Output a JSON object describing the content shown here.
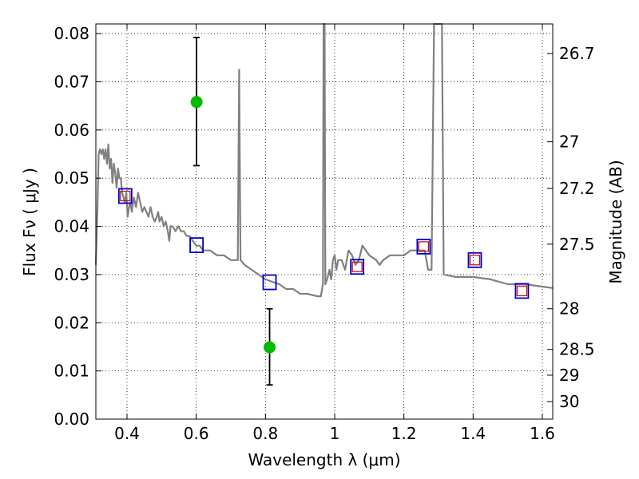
{
  "chart_data": {
    "type": "scatter",
    "title": "",
    "xlabel": "Wavelength  λ (μm)",
    "ylabel": "Flux  Fν  ( μJy )",
    "y2label": "Magnitude (AB)",
    "xlim": [
      0.31,
      1.63
    ],
    "ylim": [
      0.0,
      0.082
    ],
    "grid": true,
    "x_ticks": [
      0.4,
      0.6,
      0.8,
      1.0,
      1.2,
      1.4,
      1.6
    ],
    "x_tick_labels": [
      "0.4",
      "0.6",
      "0.8",
      "1",
      "1.2",
      "1.4",
      "1.6"
    ],
    "y_ticks": [
      0.0,
      0.01,
      0.02,
      0.03,
      0.04,
      0.05,
      0.06,
      0.07,
      0.08
    ],
    "y_tick_labels": [
      "0.00",
      "0.01",
      "0.02",
      "0.03",
      "0.04",
      "0.05",
      "0.06",
      "0.07",
      "0.08"
    ],
    "y2_ticks": [
      26.7,
      27,
      27.2,
      27.5,
      28,
      28.5,
      29,
      30
    ],
    "y2_tick_labels": [
      "26.7",
      "27",
      "27.2",
      "27.5",
      "28",
      "28.5",
      "29",
      "30"
    ],
    "series": [
      {
        "kind": "line",
        "color": "#808080",
        "points": [
          [
            0.31,
            0.032
          ],
          [
            0.315,
            0.045
          ],
          [
            0.318,
            0.055
          ],
          [
            0.322,
            0.056
          ],
          [
            0.326,
            0.055
          ],
          [
            0.33,
            0.056
          ],
          [
            0.334,
            0.054
          ],
          [
            0.338,
            0.056
          ],
          [
            0.342,
            0.053
          ],
          [
            0.346,
            0.057
          ],
          [
            0.35,
            0.052
          ],
          [
            0.354,
            0.054
          ],
          [
            0.358,
            0.049
          ],
          [
            0.362,
            0.053
          ],
          [
            0.366,
            0.051
          ],
          [
            0.37,
            0.048
          ],
          [
            0.374,
            0.052
          ],
          [
            0.378,
            0.05
          ],
          [
            0.382,
            0.05
          ],
          [
            0.386,
            0.047
          ],
          [
            0.39,
            0.046
          ],
          [
            0.394,
            0.045
          ],
          [
            0.398,
            0.047
          ],
          [
            0.402,
            0.042
          ],
          [
            0.406,
            0.044
          ],
          [
            0.41,
            0.045
          ],
          [
            0.414,
            0.043
          ],
          [
            0.42,
            0.046
          ],
          [
            0.426,
            0.044
          ],
          [
            0.432,
            0.047
          ],
          [
            0.438,
            0.045
          ],
          [
            0.444,
            0.043
          ],
          [
            0.45,
            0.044
          ],
          [
            0.456,
            0.043
          ],
          [
            0.462,
            0.042
          ],
          [
            0.468,
            0.044
          ],
          [
            0.474,
            0.042
          ],
          [
            0.48,
            0.041
          ],
          [
            0.486,
            0.042
          ],
          [
            0.49,
            0.043
          ],
          [
            0.494,
            0.041
          ],
          [
            0.5,
            0.042
          ],
          [
            0.506,
            0.04
          ],
          [
            0.512,
            0.041
          ],
          [
            0.518,
            0.039
          ],
          [
            0.522,
            0.037
          ],
          [
            0.526,
            0.04
          ],
          [
            0.532,
            0.04
          ],
          [
            0.54,
            0.039
          ],
          [
            0.548,
            0.04
          ],
          [
            0.556,
            0.039
          ],
          [
            0.564,
            0.039
          ],
          [
            0.572,
            0.038
          ],
          [
            0.58,
            0.038
          ],
          [
            0.59,
            0.037
          ],
          [
            0.6,
            0.036
          ],
          [
            0.61,
            0.036
          ],
          [
            0.62,
            0.035
          ],
          [
            0.64,
            0.035
          ],
          [
            0.66,
            0.034
          ],
          [
            0.68,
            0.034
          ],
          [
            0.7,
            0.033
          ],
          [
            0.72,
            0.033
          ],
          [
            0.724,
            0.0725
          ],
          [
            0.728,
            0.033
          ],
          [
            0.74,
            0.032
          ],
          [
            0.76,
            0.031
          ],
          [
            0.78,
            0.03
          ],
          [
            0.8,
            0.029
          ],
          [
            0.82,
            0.0285
          ],
          [
            0.84,
            0.028
          ],
          [
            0.86,
            0.027
          ],
          [
            0.88,
            0.027
          ],
          [
            0.9,
            0.026
          ],
          [
            0.92,
            0.026
          ],
          [
            0.95,
            0.0255
          ],
          [
            0.96,
            0.0255
          ],
          [
            0.966,
            0.028
          ],
          [
            0.968,
            0.083
          ],
          [
            0.971,
            0.083
          ],
          [
            0.973,
            0.028
          ],
          [
            0.978,
            0.029
          ],
          [
            0.985,
            0.031
          ],
          [
            0.99,
            0.029
          ],
          [
            0.995,
            0.033
          ],
          [
            1.0,
            0.034
          ],
          [
            1.005,
            0.031
          ],
          [
            1.01,
            0.033
          ],
          [
            1.02,
            0.033
          ],
          [
            1.03,
            0.031
          ],
          [
            1.04,
            0.035
          ],
          [
            1.05,
            0.034
          ],
          [
            1.06,
            0.032
          ],
          [
            1.07,
            0.033
          ],
          [
            1.08,
            0.036
          ],
          [
            1.09,
            0.035
          ],
          [
            1.1,
            0.034
          ],
          [
            1.12,
            0.033
          ],
          [
            1.13,
            0.032
          ],
          [
            1.14,
            0.033
          ],
          [
            1.16,
            0.034
          ],
          [
            1.18,
            0.034
          ],
          [
            1.2,
            0.034
          ],
          [
            1.22,
            0.035
          ],
          [
            1.24,
            0.035
          ],
          [
            1.26,
            0.035
          ],
          [
            1.27,
            0.031
          ],
          [
            1.28,
            0.031
          ],
          [
            1.287,
            0.083
          ],
          [
            1.31,
            0.083
          ],
          [
            1.315,
            0.03
          ],
          [
            1.35,
            0.0295
          ],
          [
            1.4,
            0.0295
          ],
          [
            1.45,
            0.029
          ],
          [
            1.5,
            0.028
          ],
          [
            1.55,
            0.028
          ],
          [
            1.6,
            0.0275
          ],
          [
            1.63,
            0.0272
          ]
        ]
      },
      {
        "kind": "open-square",
        "color": "#0000cc",
        "points": [
          [
            0.395,
            0.0463
          ],
          [
            0.601,
            0.0361
          ],
          [
            0.812,
            0.0284
          ],
          [
            1.065,
            0.0316
          ],
          [
            1.257,
            0.0358
          ],
          [
            1.405,
            0.033
          ],
          [
            1.541,
            0.0266
          ]
        ]
      },
      {
        "kind": "open-square-small",
        "color": "#cc0000",
        "points": [
          [
            0.395,
            0.0463
          ],
          [
            1.065,
            0.0316
          ],
          [
            1.257,
            0.0358
          ],
          [
            1.405,
            0.033
          ],
          [
            1.541,
            0.0266
          ]
        ]
      },
      {
        "kind": "point-errorbar",
        "color": "#00bb00",
        "points": [
          {
            "x": 0.601,
            "y": 0.0658,
            "ylo": 0.0526,
            "yhi": 0.0792
          },
          {
            "x": 0.812,
            "y": 0.0149,
            "ylo": 0.0071,
            "yhi": 0.0229
          }
        ]
      }
    ]
  }
}
